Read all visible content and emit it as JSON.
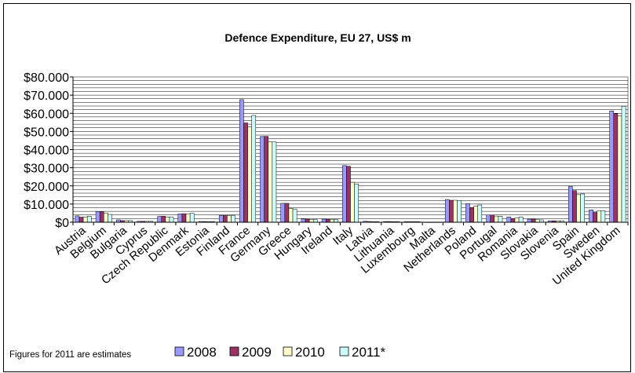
{
  "chart_data": {
    "type": "bar",
    "title": "Defence Expenditure, EU 27, US$ m",
    "note": "Figures for 2011 are estimates",
    "ylim": [
      0,
      80000
    ],
    "yticks": [
      0,
      10000,
      20000,
      30000,
      40000,
      50000,
      60000,
      70000,
      80000
    ],
    "ytick_labels": [
      "$0",
      "$10.000",
      "$20.000",
      "$30.000",
      "$40.000",
      "$50.000",
      "$60.000",
      "$70.000",
      "$80.000"
    ],
    "grid": "horizontal",
    "legend_position": "bottom",
    "categories": [
      "Austria",
      "Belgium",
      "Bulgaria",
      "Cyprus",
      "Czech Republic",
      "Denmark",
      "Estonia",
      "Finland",
      "France",
      "Germany",
      "Greece",
      "Hungary",
      "Ireland",
      "Italy",
      "Latvia",
      "Lithuania",
      "Luxembourg",
      "Malta",
      "Netherlands",
      "Poland",
      "Portugal",
      "Romania",
      "Slovakia",
      "Slovenia",
      "Spain",
      "Sweden",
      "United Kingdom"
    ],
    "series": [
      {
        "name": "2008",
        "color": "#9999ff",
        "values": [
          3500,
          5900,
          1300,
          500,
          3200,
          4600,
          400,
          3800,
          67500,
          47200,
          10400,
          1800,
          1700,
          31200,
          500,
          400,
          300,
          50,
          12500,
          10300,
          4000,
          2900,
          1700,
          800,
          19700,
          6800,
          61300
        ]
      },
      {
        "name": "2009",
        "color": "#993366",
        "values": [
          2800,
          5700,
          900,
          500,
          3300,
          4700,
          400,
          3700,
          54700,
          47300,
          10400,
          1700,
          1600,
          30800,
          400,
          400,
          300,
          50,
          12100,
          8100,
          4000,
          2000,
          1700,
          800,
          17400,
          5400,
          59800
        ]
      },
      {
        "name": "2010",
        "color": "#ffffcc",
        "values": [
          2900,
          5100,
          900,
          500,
          2900,
          4500,
          300,
          3600,
          52500,
          44300,
          7600,
          1500,
          1500,
          22000,
          300,
          300,
          300,
          50,
          12100,
          8800,
          3400,
          2300,
          1400,
          800,
          15200,
          6200,
          58700
        ]
      },
      {
        "name": "2011*",
        "color": "#ccffff",
        "values": [
          3300,
          4300,
          900,
          500,
          2800,
          4900,
          400,
          3600,
          58800,
          44200,
          7300,
          1400,
          1500,
          21100,
          300,
          300,
          300,
          50,
          12000,
          9500,
          3300,
          2900,
          1300,
          800,
          15600,
          6400,
          63900
        ]
      }
    ]
  }
}
